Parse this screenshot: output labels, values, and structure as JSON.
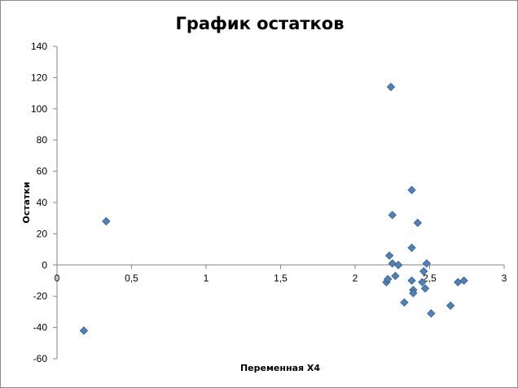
{
  "chart_data": {
    "type": "scatter",
    "title": "График остатков",
    "xlabel": "Переменная X4",
    "ylabel": "Остатки",
    "xlim": [
      0,
      3
    ],
    "ylim": [
      -60,
      140
    ],
    "x_ticks": [
      "0",
      "0,5",
      "1",
      "1,5",
      "2",
      "2,5",
      "3"
    ],
    "x_tick_values": [
      0,
      0.5,
      1,
      1.5,
      2,
      2.5,
      3
    ],
    "y_ticks": [
      "-60",
      "-40",
      "-20",
      "0",
      "20",
      "40",
      "60",
      "80",
      "100",
      "120",
      "140"
    ],
    "y_tick_values": [
      -60,
      -40,
      -20,
      0,
      20,
      40,
      60,
      80,
      100,
      120,
      140
    ],
    "grid": false,
    "legend": "none",
    "marker": "diamond",
    "marker_color": "#4f81bd",
    "points": [
      {
        "x": 0.18,
        "y": -42
      },
      {
        "x": 0.33,
        "y": 28
      },
      {
        "x": 2.21,
        "y": -11
      },
      {
        "x": 2.22,
        "y": -9
      },
      {
        "x": 2.23,
        "y": 6
      },
      {
        "x": 2.24,
        "y": 114
      },
      {
        "x": 2.25,
        "y": 32
      },
      {
        "x": 2.25,
        "y": 1
      },
      {
        "x": 2.27,
        "y": -7
      },
      {
        "x": 2.29,
        "y": 0
      },
      {
        "x": 2.33,
        "y": -24
      },
      {
        "x": 2.38,
        "y": 48
      },
      {
        "x": 2.38,
        "y": 11
      },
      {
        "x": 2.38,
        "y": -10
      },
      {
        "x": 2.39,
        "y": -16
      },
      {
        "x": 2.39,
        "y": -18
      },
      {
        "x": 2.42,
        "y": 27
      },
      {
        "x": 2.45,
        "y": -11
      },
      {
        "x": 2.46,
        "y": -4
      },
      {
        "x": 2.47,
        "y": -15
      },
      {
        "x": 2.48,
        "y": 1
      },
      {
        "x": 2.51,
        "y": -31
      },
      {
        "x": 2.64,
        "y": -26
      },
      {
        "x": 2.69,
        "y": -11
      },
      {
        "x": 2.73,
        "y": -10
      }
    ]
  }
}
